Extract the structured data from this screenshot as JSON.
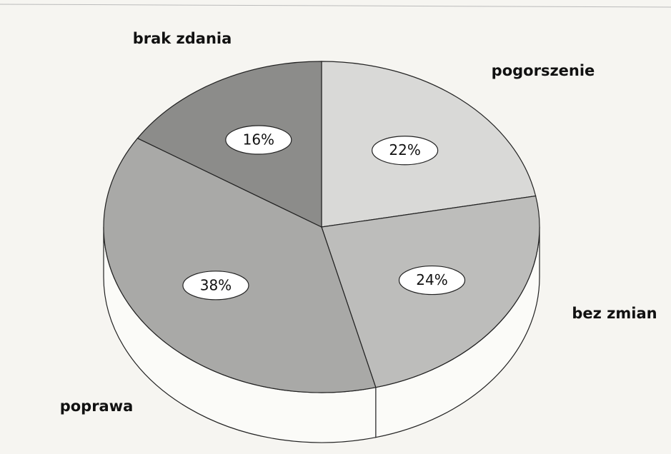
{
  "chart_data": {
    "type": "pie",
    "categories": [
      "pogorszenie",
      "bez zmian",
      "poprawa",
      "brak zdania"
    ],
    "values": [
      22,
      24,
      38,
      16
    ],
    "value_labels": [
      "22%",
      "24%",
      "38%",
      "16%"
    ],
    "colors": [
      "#d9d9d7",
      "#bdbdbb",
      "#a9a9a7",
      "#8c8c8a"
    ]
  }
}
